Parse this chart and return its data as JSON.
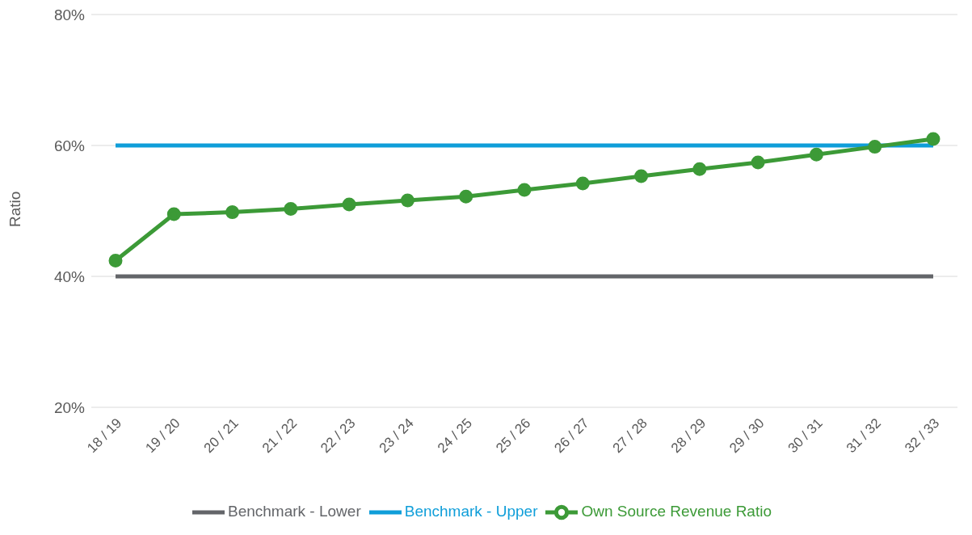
{
  "chart_data": {
    "type": "line",
    "ylabel": "Ratio",
    "categories": [
      "18 / 19",
      "19 / 20",
      "20 / 21",
      "21 / 22",
      "22 / 23",
      "23 / 24",
      "24 / 25",
      "25 / 26",
      "26 / 27",
      "27 / 28",
      "28 / 29",
      "29 / 30",
      "30 / 31",
      "31 / 32",
      "32 / 33"
    ],
    "series": [
      {
        "name": "Benchmark - Upper",
        "color": "#0f9ed9",
        "marker": "none",
        "values": [
          60,
          60,
          60,
          60,
          60,
          60,
          60,
          60,
          60,
          60,
          60,
          60,
          60,
          60,
          60
        ]
      },
      {
        "name": "Benchmark - Lower",
        "color": "#636569",
        "marker": "none",
        "values": [
          40,
          40,
          40,
          40,
          40,
          40,
          40,
          40,
          40,
          40,
          40,
          40,
          40,
          40,
          40
        ]
      },
      {
        "name": "Own Source Revenue Ratio",
        "color": "#3c9a37",
        "marker": "circle",
        "values": [
          42.4,
          49.5,
          49.8,
          50.3,
          51.0,
          51.6,
          52.2,
          53.2,
          54.2,
          55.3,
          56.4,
          57.4,
          58.6,
          59.8,
          61.0
        ]
      }
    ],
    "ylim": [
      20,
      80
    ],
    "yticks": [
      {
        "value": 20,
        "label": "20%"
      },
      {
        "value": 40,
        "label": "40%"
      },
      {
        "value": 60,
        "label": "60%"
      },
      {
        "value": 80,
        "label": "80%"
      }
    ],
    "grid": "y",
    "legend": "bottom"
  }
}
